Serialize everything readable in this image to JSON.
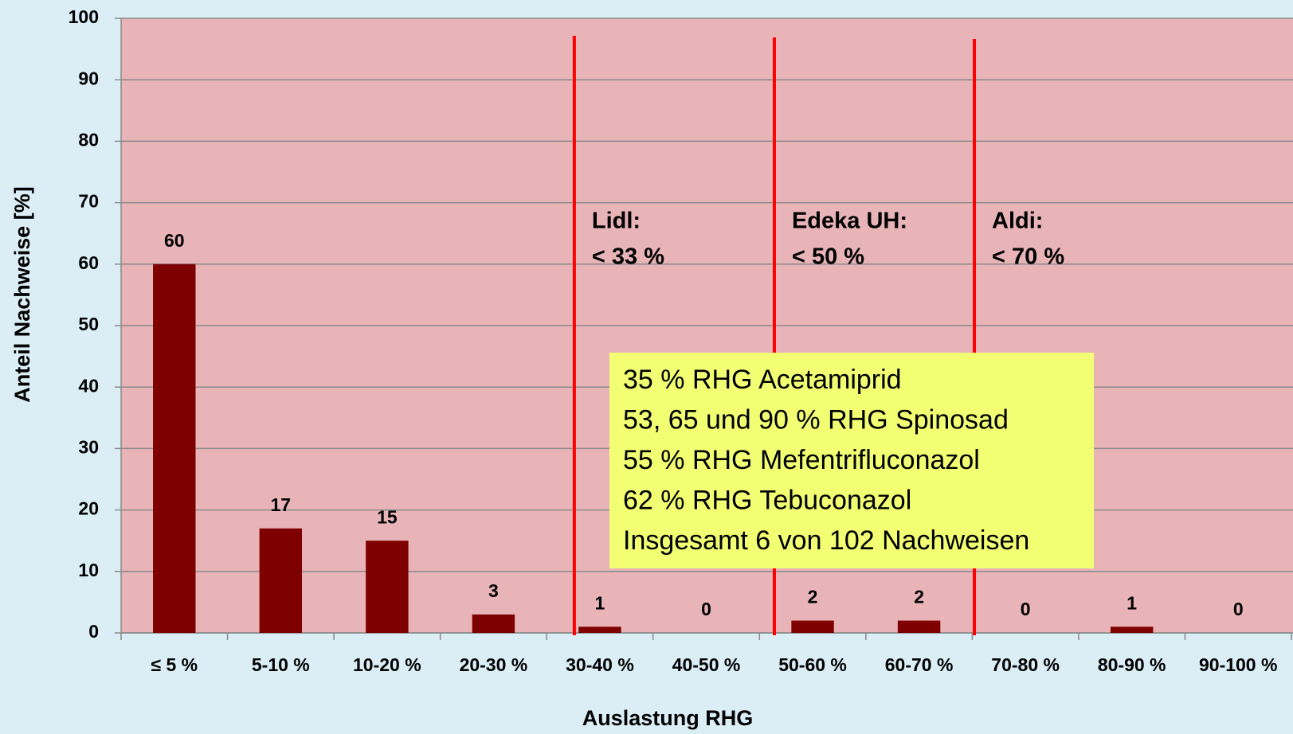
{
  "chart_data": {
    "type": "bar",
    "xlabel": "Auslastung RHG",
    "ylabel": "Anteil Nachweise [%]",
    "categories": [
      "≤ 5 %",
      "5-10 %",
      "10-20 %",
      "20-30 %",
      "30-40 %",
      "40-50 %",
      "50-60 %",
      "60-70 %",
      "70-80 %",
      "80-90 %",
      "90-100 %"
    ],
    "values": [
      60,
      17,
      15,
      3,
      1,
      0,
      2,
      2,
      0,
      1,
      0
    ],
    "color": "#7f0000",
    "ylim": [
      0,
      100
    ],
    "yticks": [
      0,
      10,
      20,
      30,
      40,
      50,
      60,
      70,
      80,
      90,
      100
    ],
    "grid": true,
    "reference_lines": [
      {
        "label_lines": [
          "Lidl:",
          "< 33 %"
        ],
        "color": "#ff0000"
      },
      {
        "label_lines": [
          "Edeka UH:",
          "< 50 %"
        ],
        "color": "#ff0000"
      },
      {
        "label_lines": [
          "Aldi:",
          "< 70 %"
        ],
        "color": "#ff0000"
      }
    ],
    "note_lines": [
      "35 % RHG Acetamiprid",
      "53, 65 und 90 % RHG Spinosad",
      "55 % RHG Mefentrifluconazol",
      "62 % RHG Tebuconazol",
      "Insgesamt 6 von 102 Nachweisen"
    ]
  }
}
